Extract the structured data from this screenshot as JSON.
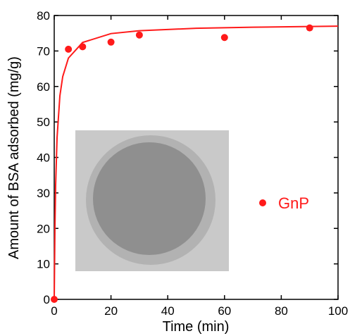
{
  "chart_data": {
    "type": "scatter",
    "xlabel": "Time (min)",
    "ylabel": "Amount of BSA adsorbed (mg/g)",
    "xlim": [
      0,
      100
    ],
    "xticks": [
      0,
      20,
      40,
      60,
      80,
      100
    ],
    "ylim": [
      0,
      80
    ],
    "yticks": [
      0,
      10,
      20,
      30,
      40,
      50,
      60,
      70,
      80
    ],
    "series": [
      {
        "name": "GnP",
        "color": "#ff1a1a",
        "kind": "points",
        "x": [
          0,
          5,
          10,
          20,
          30,
          60,
          90
        ],
        "values": [
          0,
          70.5,
          71.2,
          72.5,
          74.5,
          73.8,
          76.5
        ]
      },
      {
        "color": "#ff1a1a",
        "kind": "line",
        "x": [
          0,
          0.25,
          0.5,
          1,
          2,
          3,
          5,
          10,
          20,
          30,
          50,
          70,
          100
        ],
        "values": [
          0,
          20.3,
          32.3,
          45.6,
          57.4,
          62.8,
          68.0,
          72.4,
          74.9,
          75.7,
          76.4,
          76.7,
          77.0
        ]
      }
    ]
  }
}
